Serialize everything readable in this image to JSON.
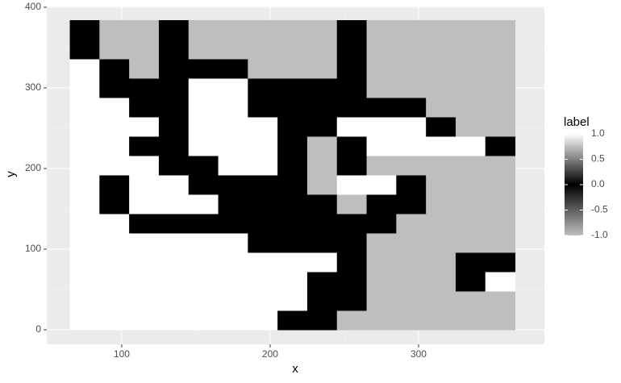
{
  "chart_data": {
    "type": "heatmap",
    "xlabel": "x",
    "ylabel": "y",
    "legend_title": "label",
    "x": [
      75,
      95,
      115,
      135,
      155,
      175,
      195,
      215,
      235,
      255,
      275,
      295,
      315,
      335,
      355
    ],
    "y": [
      12,
      36,
      60,
      84,
      108,
      132,
      156,
      180,
      204,
      228,
      252,
      276,
      300,
      324,
      348,
      372
    ],
    "values": [
      [
        1,
        1,
        1,
        1,
        1,
        1,
        1,
        0,
        0,
        -1,
        -1,
        -1,
        -1,
        -1,
        -1
      ],
      [
        1,
        1,
        1,
        1,
        1,
        1,
        1,
        1,
        0,
        0,
        -1,
        -1,
        -1,
        -1,
        -1
      ],
      [
        1,
        1,
        1,
        1,
        1,
        1,
        1,
        1,
        0,
        0,
        -1,
        -1,
        -1,
        0,
        1
      ],
      [
        1,
        1,
        1,
        1,
        1,
        1,
        1,
        1,
        1,
        0,
        -1,
        -1,
        -1,
        0,
        0
      ],
      [
        1,
        1,
        1,
        1,
        1,
        1,
        0,
        0,
        0,
        0,
        -1,
        -1,
        -1,
        -1,
        -1
      ],
      [
        1,
        1,
        0,
        0,
        0,
        0,
        0,
        0,
        0,
        0,
        0,
        -1,
        -1,
        -1,
        -1
      ],
      [
        1,
        0,
        1,
        1,
        1,
        0,
        0,
        0,
        0,
        -1,
        0,
        0,
        -1,
        -1,
        -1
      ],
      [
        1,
        0,
        1,
        1,
        0,
        0,
        0,
        0,
        -1,
        1,
        1,
        0,
        -1,
        -1,
        -1
      ],
      [
        1,
        1,
        1,
        0,
        0,
        1,
        1,
        0,
        -1,
        0,
        -1,
        -1,
        -1,
        -1,
        -1
      ],
      [
        1,
        1,
        0,
        0,
        1,
        1,
        1,
        0,
        -1,
        0,
        1,
        1,
        1,
        1,
        0
      ],
      [
        1,
        1,
        1,
        0,
        1,
        1,
        1,
        0,
        0,
        1,
        1,
        1,
        0,
        -1,
        -1
      ],
      [
        1,
        1,
        0,
        0,
        1,
        1,
        0,
        0,
        0,
        0,
        0,
        0,
        -1,
        -1,
        -1
      ],
      [
        1,
        0,
        0,
        0,
        1,
        1,
        0,
        0,
        0,
        0,
        -1,
        -1,
        -1,
        -1,
        -1
      ],
      [
        1,
        0,
        -1,
        0,
        0,
        0,
        -1,
        -1,
        -1,
        0,
        -1,
        -1,
        -1,
        -1,
        -1
      ],
      [
        0,
        -1,
        -1,
        0,
        -1,
        -1,
        -1,
        -1,
        -1,
        0,
        -1,
        -1,
        -1,
        -1,
        -1
      ],
      [
        0,
        -1,
        -1,
        0,
        -1,
        -1,
        -1,
        -1,
        -1,
        0,
        -1,
        -1,
        -1,
        -1,
        -1
      ]
    ],
    "colors": {
      "low": "#bebebe",
      "mid": "#000000",
      "high": "#ffffff"
    },
    "colorlim": [
      -1,
      1
    ],
    "colorticks": [
      {
        "value": 1,
        "label": "1.0"
      },
      0.5,
      {
        "value": 0,
        "label": "0.0"
      },
      -0.5,
      {
        "value": -1,
        "label": "-1.0"
      }
    ],
    "xlim": [
      49.5,
      384.8
    ],
    "ylim": [
      -18,
      401
    ],
    "xticks": [
      100,
      200,
      300
    ],
    "yticks": [
      0,
      100,
      200,
      300,
      400
    ],
    "grid": true
  }
}
